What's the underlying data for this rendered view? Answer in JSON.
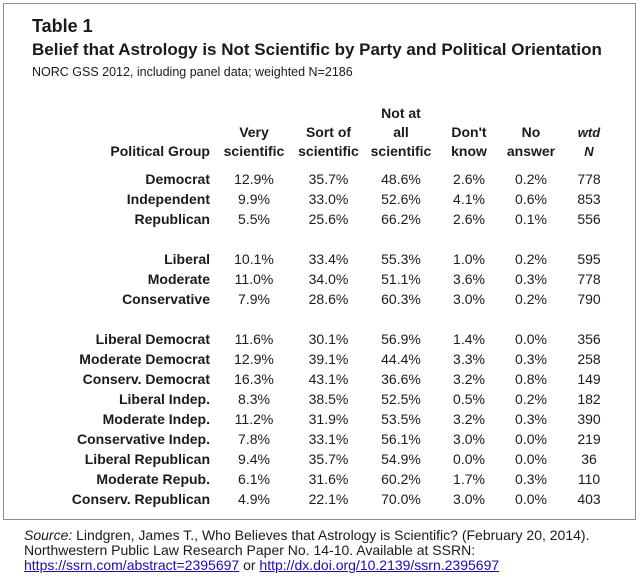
{
  "title": "Table 1",
  "subtitle": "Belief that Astrology is Not Scientific by Party and Political Orientation",
  "note": "NORC GSS 2012, including panel data; weighted N=2186",
  "header": {
    "group": "Political Group",
    "very_l1": "Very",
    "very_l2": "scientific",
    "sort_l1": "Sort of",
    "sort_l2": "scientific",
    "notat_l1": "Not at",
    "notat_l2": "all",
    "notat_l3": "scientific",
    "dk_l1": "Don't",
    "dk_l2": "know",
    "na_l1": "No",
    "na_l2": "answer",
    "wtd_l1": "wtd",
    "wtd_l2": "N"
  },
  "rows": [
    {
      "group": "Democrat",
      "very": "12.9%",
      "sort": "35.7%",
      "notat": "48.6%",
      "dk": "2.6%",
      "na": "0.2%",
      "n": "778"
    },
    {
      "group": "Independent",
      "very": "9.9%",
      "sort": "33.0%",
      "notat": "52.6%",
      "dk": "4.1%",
      "na": "0.6%",
      "n": "853"
    },
    {
      "group": "Republican",
      "very": "5.5%",
      "sort": "25.6%",
      "notat": "66.2%",
      "dk": "2.6%",
      "na": "0.1%",
      "n": "556"
    },
    {
      "group": "Liberal",
      "very": "10.1%",
      "sort": "33.4%",
      "notat": "55.3%",
      "dk": "1.0%",
      "na": "0.2%",
      "n": "595"
    },
    {
      "group": "Moderate",
      "very": "11.0%",
      "sort": "34.0%",
      "notat": "51.1%",
      "dk": "3.6%",
      "na": "0.3%",
      "n": "778"
    },
    {
      "group": "Conservative",
      "very": "7.9%",
      "sort": "28.6%",
      "notat": "60.3%",
      "dk": "3.0%",
      "na": "0.2%",
      "n": "790"
    },
    {
      "group": "Liberal Democrat",
      "very": "11.6%",
      "sort": "30.1%",
      "notat": "56.9%",
      "dk": "1.4%",
      "na": "0.0%",
      "n": "356"
    },
    {
      "group": "Moderate Democrat",
      "very": "12.9%",
      "sort": "39.1%",
      "notat": "44.4%",
      "dk": "3.3%",
      "na": "0.3%",
      "n": "258"
    },
    {
      "group": "Conserv. Democrat",
      "very": "16.3%",
      "sort": "43.1%",
      "notat": "36.6%",
      "dk": "3.2%",
      "na": "0.8%",
      "n": "149"
    },
    {
      "group": "Liberal Indep.",
      "very": "8.3%",
      "sort": "38.5%",
      "notat": "52.5%",
      "dk": "0.5%",
      "na": "0.2%",
      "n": "182"
    },
    {
      "group": "Moderate Indep.",
      "very": "11.2%",
      "sort": "31.9%",
      "notat": "53.5%",
      "dk": "3.2%",
      "na": "0.3%",
      "n": "390"
    },
    {
      "group": "Conservative Indep.",
      "very": "7.8%",
      "sort": "33.1%",
      "notat": "56.1%",
      "dk": "3.0%",
      "na": "0.0%",
      "n": "219"
    },
    {
      "group": "Liberal Republican",
      "very": "9.4%",
      "sort": "35.7%",
      "notat": "54.9%",
      "dk": "0.0%",
      "na": "0.0%",
      "n": "36"
    },
    {
      "group": "Moderate Repub.",
      "very": "6.1%",
      "sort": "31.6%",
      "notat": "60.2%",
      "dk": "1.7%",
      "na": "0.3%",
      "n": "110"
    },
    {
      "group": "Conserv. Republican",
      "very": "4.9%",
      "sort": "22.1%",
      "notat": "70.0%",
      "dk": "3.0%",
      "na": "0.0%",
      "n": "403"
    }
  ],
  "source": {
    "label": "Source:",
    "text": " Lindgren, James T., Who Believes that Astrology is Scientific? (February 20, 2014). Northwestern Public Law Research Paper No. 14-10. Available at SSRN: ",
    "link1": "https://ssrn.com/abstract=2395697",
    "or": " or ",
    "link2": "http://dx.doi.org/10.2139/ssrn.2395697"
  }
}
